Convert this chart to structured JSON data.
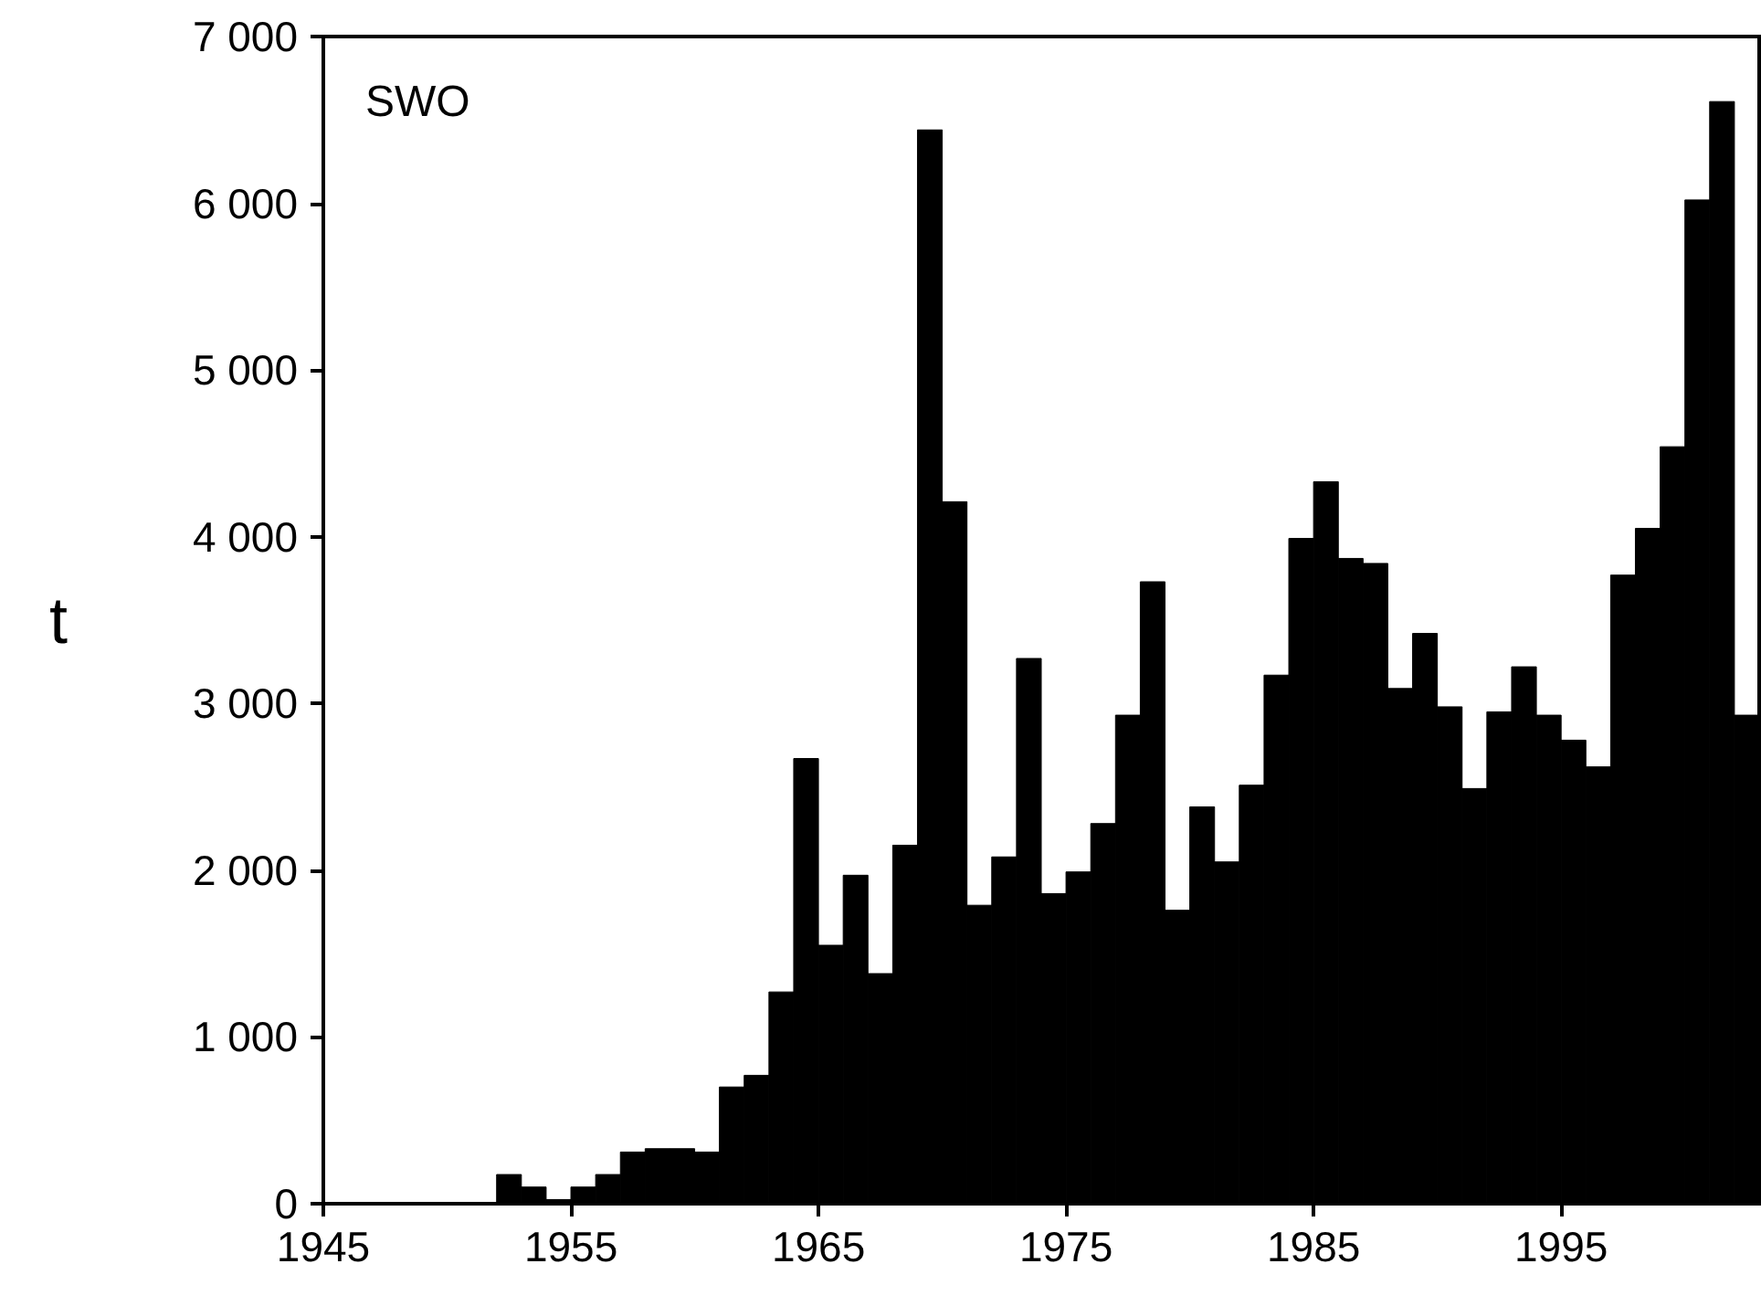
{
  "chart_data": {
    "type": "histogram",
    "ylabel": "t",
    "annotations": [
      "SWO"
    ],
    "color": "#000000",
    "bins": [
      1952,
      1953,
      1954,
      1955,
      1956,
      1957,
      1958,
      1959,
      1960,
      1961,
      1962,
      1963,
      1964,
      1965,
      1966,
      1967,
      1968,
      1969,
      1970,
      1971,
      1972,
      1973,
      1974,
      1975,
      1976,
      1977,
      1978,
      1979,
      1980,
      1981,
      1982,
      1983,
      1984,
      1985,
      1986,
      1987,
      1988,
      1989,
      1990,
      1991,
      1992,
      1993,
      1994,
      1995,
      1996,
      1997,
      1998,
      1999,
      2000,
      2001,
      2002,
      2003
    ],
    "values": [
      175,
      100,
      25,
      100,
      175,
      310,
      330,
      330,
      310,
      700,
      770,
      1270,
      2670,
      1550,
      1970,
      1380,
      2150,
      6440,
      4210,
      1790,
      2080,
      3270,
      1860,
      1990,
      2280,
      2930,
      3730,
      1760,
      2380,
      2050,
      2510,
      3170,
      3990,
      4330,
      3870,
      3840,
      3090,
      3420,
      2980,
      2490,
      2950,
      3220,
      2930,
      2780,
      2620,
      3770,
      4050,
      4540,
      6020,
      6610,
      2930
    ],
    "xlim": [
      1945,
      2003
    ],
    "xticks": [
      1945,
      1955,
      1965,
      1975,
      1985,
      1995
    ],
    "ylim": [
      0,
      7000
    ],
    "yticks": [
      0,
      {
        "value": 1000,
        "label": "1 000"
      },
      {
        "value": 2000,
        "label": "2 000"
      },
      {
        "value": 3000,
        "label": "3 000"
      },
      {
        "value": 4000,
        "label": "4 000"
      },
      {
        "value": 5000,
        "label": "5 000"
      },
      {
        "value": 6000,
        "label": "6 000"
      },
      {
        "value": 7000,
        "label": "7 000"
      }
    ],
    "grid": false
  }
}
